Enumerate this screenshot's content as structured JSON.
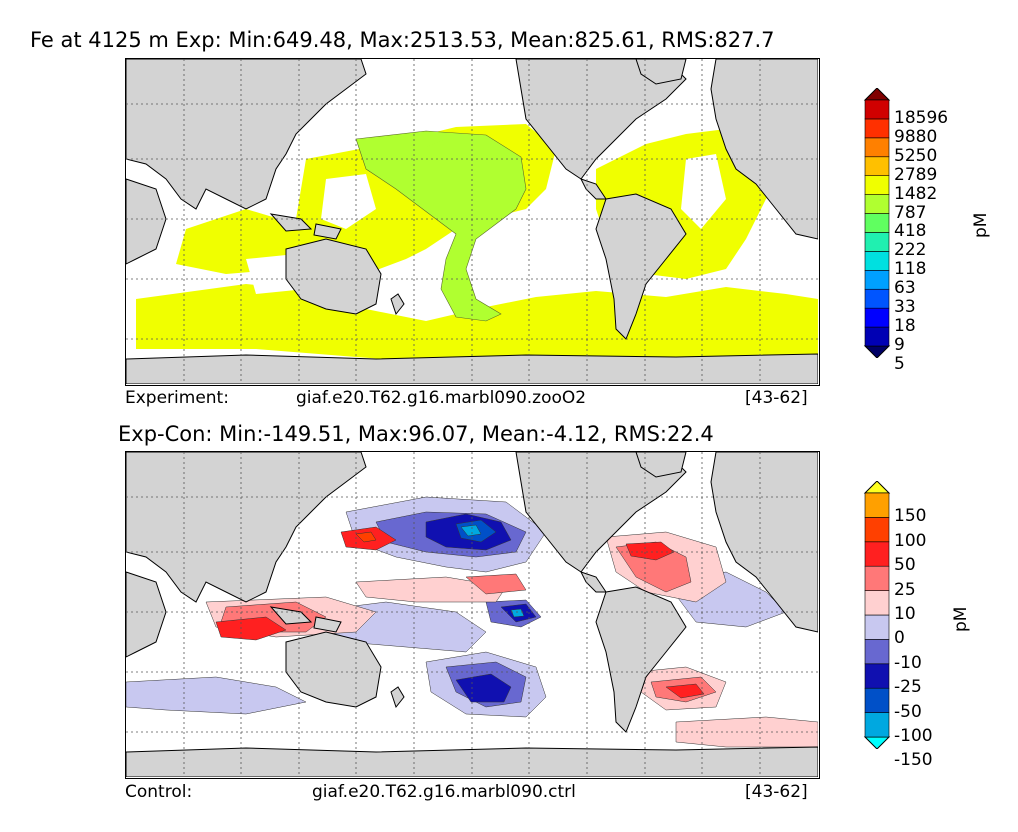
{
  "panels": [
    {
      "title": "Fe at 4125 m Exp: Min:649.48, Max:2513.53, Mean:825.61, RMS:827.7",
      "footer_label": "Experiment:",
      "footer_case": "giaf.e20.T62.g16.marbl090.zooO2",
      "footer_years": "[43-62]",
      "colorbar": {
        "unit": "pM",
        "levels": [
          "18596",
          "9880",
          "5250",
          "2789",
          "1482",
          "787",
          "418",
          "222",
          "118",
          "63",
          "33",
          "18",
          "9",
          "5"
        ],
        "colors": [
          "#000066",
          "#0000b4",
          "#0000ff",
          "#0055ff",
          "#00a0ff",
          "#00e0e0",
          "#20f0b0",
          "#60ff60",
          "#b0ff30",
          "#f0ff00",
          "#ffc000",
          "#ff8000",
          "#ff3000",
          "#d00000",
          "#800000"
        ]
      }
    },
    {
      "title": "Exp-Con: Min:-149.51, Max:96.07, Mean:-4.12, RMS:22.4",
      "footer_label": "Control:",
      "footer_case": "giaf.e20.T62.g16.marbl090.ctrl",
      "footer_years": "[43-62]",
      "colorbar": {
        "unit": "pM",
        "levels": [
          "150",
          "100",
          "50",
          "25",
          "10",
          "0",
          "-10",
          "-25",
          "-50",
          "-100",
          "-150"
        ],
        "colors": [
          "#00ffff",
          "#00a8e0",
          "#0050c8",
          "#1010b0",
          "#6868d0",
          "#c8c8f0",
          "#ffd0d0",
          "#ff7878",
          "#ff2020",
          "#ff4000",
          "#ffa000",
          "#ffff20"
        ]
      }
    }
  ],
  "map_colors": {
    "land": "#d3d3d3",
    "ocean_blank": "#ffffff"
  }
}
